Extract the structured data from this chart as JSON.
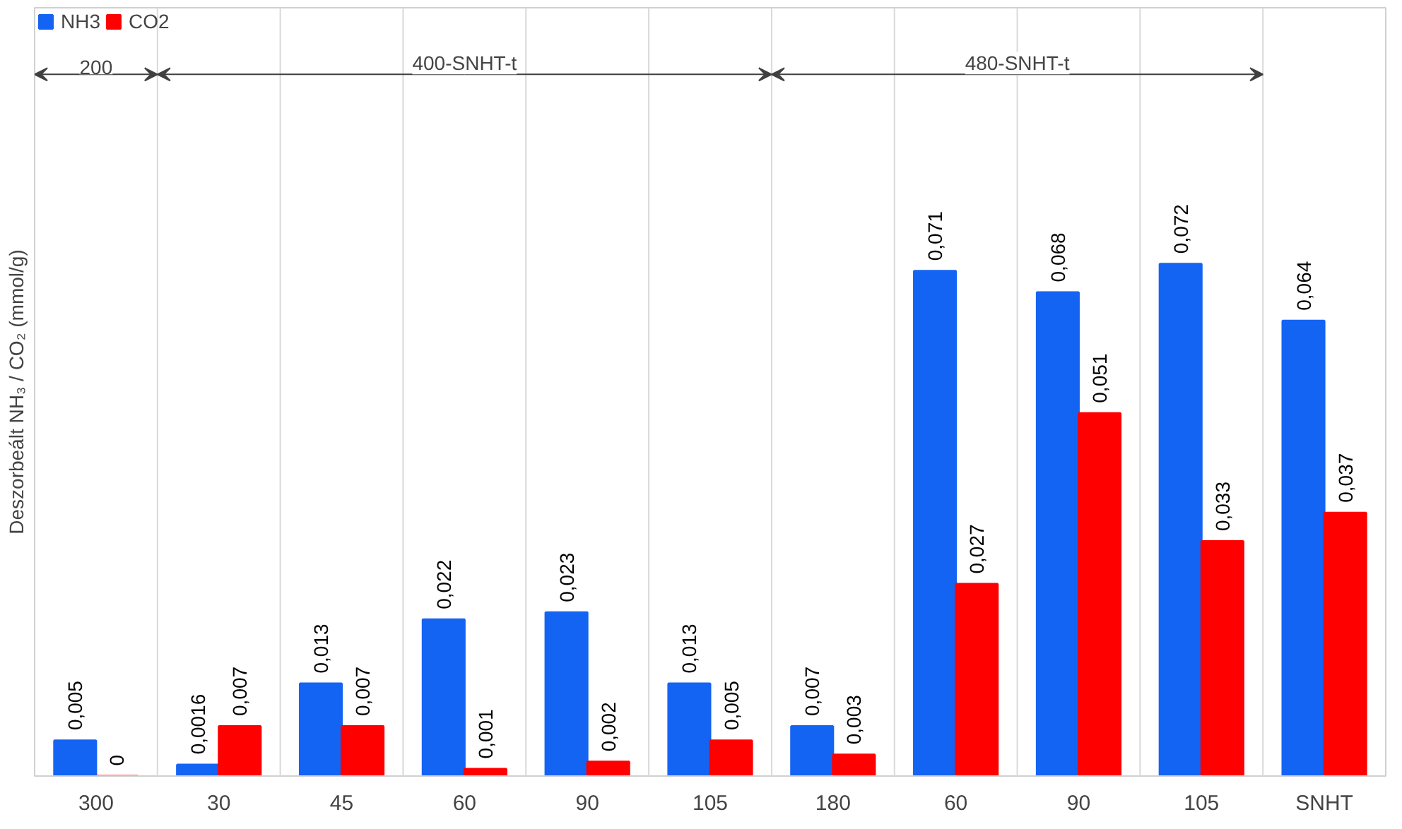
{
  "chart_data": {
    "type": "bar",
    "ylabel": "Deszorbeált NH₃ / CO₂ (mmol/g)",
    "categories": [
      "300",
      "30",
      "45",
      "60",
      "90",
      "105",
      "180",
      "60",
      "90",
      "105",
      "SNHT"
    ],
    "series": [
      {
        "name": "NH3",
        "color": "#1464f4",
        "values": [
          0.005,
          0.0016,
          0.013,
          0.022,
          0.023,
          0.013,
          0.007,
          0.071,
          0.068,
          0.072,
          0.064
        ],
        "value_labels": [
          "0,005",
          "0,0016",
          "0,013",
          "0,022",
          "0,023",
          "0,013",
          "0,007",
          "0,071",
          "0,068",
          "0,072",
          "0,064"
        ]
      },
      {
        "name": "CO2",
        "color": "#ff0000",
        "values": [
          0,
          0.007,
          0.007,
          0.001,
          0.002,
          0.005,
          0.003,
          0.027,
          0.051,
          0.033,
          0.037
        ],
        "value_labels": [
          "0",
          "0,007",
          "0,007",
          "0,001",
          "0,002",
          "0,005",
          "0,003",
          "0,027",
          "0,051",
          "0,033",
          "0,037"
        ]
      }
    ],
    "annotations": [
      "200",
      "400-SNHT-t",
      "480-SNHT-t"
    ],
    "grid": "x",
    "legend": "top left"
  }
}
